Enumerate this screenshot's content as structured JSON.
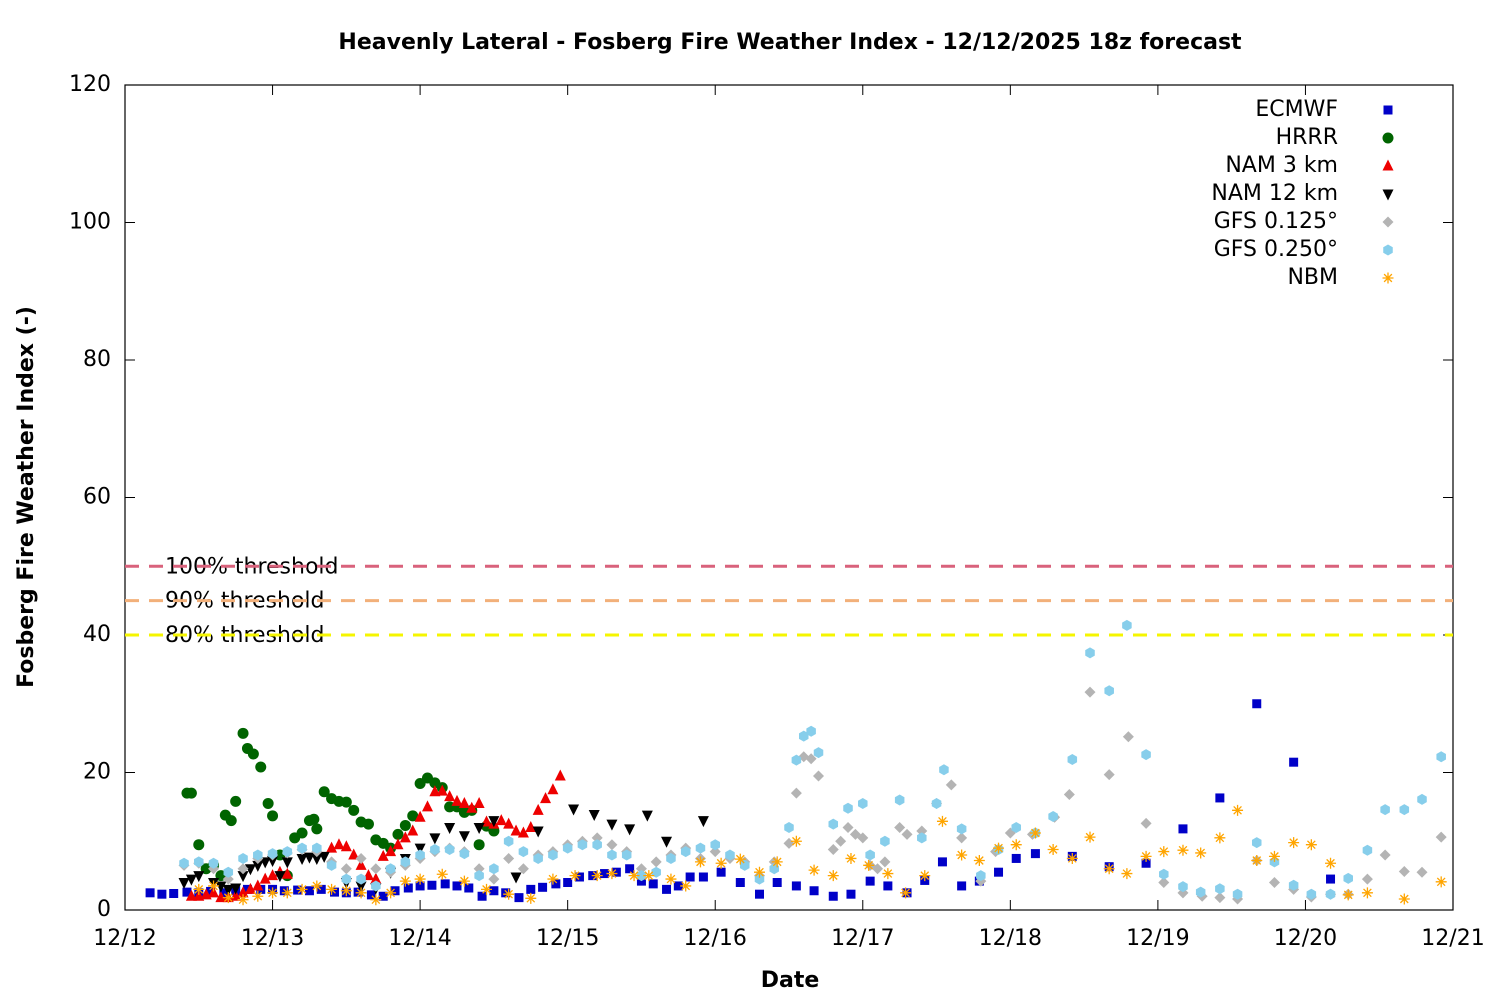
{
  "chart_data": {
    "type": "scatter",
    "title": "Heavenly Lateral - Fosberg Fire Weather Index - 12/12/2025 18z forecast",
    "xlabel": "Date",
    "ylabel": "Fosberg Fire Weather Index (-)",
    "xlim": [
      0,
      9
    ],
    "xticks": [
      {
        "value": 0,
        "label": "12/12"
      },
      {
        "value": 1,
        "label": "12/13"
      },
      {
        "value": 2,
        "label": "12/14"
      },
      {
        "value": 3,
        "label": "12/15"
      },
      {
        "value": 4,
        "label": "12/16"
      },
      {
        "value": 5,
        "label": "12/17"
      },
      {
        "value": 6,
        "label": "12/18"
      },
      {
        "value": 7,
        "label": "12/19"
      },
      {
        "value": 8,
        "label": "12/20"
      },
      {
        "value": 9,
        "label": "12/21"
      }
    ],
    "ylim": [
      0,
      120
    ],
    "yticks": [
      0,
      20,
      40,
      60,
      80,
      100,
      120
    ],
    "grid": false,
    "legend": "top right",
    "thresholds": [
      {
        "label": "100% threshold",
        "value": 50,
        "color": "#d9627c"
      },
      {
        "label": "90% threshold",
        "value": 45,
        "color": "#f2b07a"
      },
      {
        "label": "80% threshold",
        "value": 40,
        "color": "#f5f500"
      }
    ],
    "series": [
      {
        "name": "ECMWF",
        "color": "#0000c8",
        "marker": "square",
        "x": [
          0.17,
          0.25,
          0.33,
          0.42,
          0.5,
          0.58,
          0.67,
          0.75,
          0.83,
          0.92,
          1.0,
          1.08,
          1.17,
          1.25,
          1.33,
          1.42,
          1.5,
          1.58,
          1.67,
          1.75,
          1.83,
          1.92,
          2.0,
          2.08,
          2.17,
          2.25,
          2.33,
          2.42,
          2.5,
          2.58,
          2.67,
          2.75,
          2.83,
          2.92,
          3.0,
          3.08,
          3.17,
          3.25,
          3.33,
          3.42,
          3.5,
          3.58,
          3.67,
          3.75,
          3.83,
          3.92,
          4.04,
          4.17,
          4.3,
          4.42,
          4.55,
          4.67,
          4.8,
          4.92,
          5.05,
          5.17,
          5.3,
          5.42,
          5.54,
          5.67,
          5.79,
          5.92,
          6.04,
          6.17,
          6.42,
          6.67,
          6.92,
          7.17,
          7.42,
          7.67,
          7.92,
          8.17
        ],
        "values": [
          2.5,
          2.3,
          2.4,
          2.6,
          2.5,
          2.7,
          2.5,
          2.8,
          3,
          3,
          3,
          2.8,
          2.9,
          2.8,
          3,
          2.6,
          2.5,
          2.6,
          2.2,
          2.0,
          2.8,
          3.2,
          3.5,
          3.6,
          3.8,
          3.5,
          3.2,
          2.0,
          2.8,
          2.5,
          1.8,
          3.0,
          3.3,
          3.8,
          4.0,
          4.8,
          5.0,
          5.3,
          5.5,
          6.0,
          4.2,
          3.8,
          3.0,
          3.5,
          4.8,
          4.8,
          5.5,
          4,
          2.3,
          4,
          3.5,
          2.8,
          2,
          2.3,
          4.2,
          3.5,
          2.5,
          4.3,
          7,
          3.5,
          4.2,
          5.5,
          7.5,
          8.2,
          7.8,
          6.3,
          6.8,
          11.8,
          16.3,
          30,
          21.5,
          4.5
        ]
      },
      {
        "name": "HRRR",
        "color": "#006400",
        "marker": "circle",
        "x": [
          0.42,
          0.45,
          0.5,
          0.55,
          0.6,
          0.65,
          0.68,
          0.72,
          0.75,
          0.8,
          0.83,
          0.87,
          0.92,
          0.97,
          1.0,
          1.05,
          1.1,
          1.15,
          1.2,
          1.25,
          1.28,
          1.3,
          1.35,
          1.4,
          1.45,
          1.5,
          1.55,
          1.6,
          1.65,
          1.7,
          1.75,
          1.8,
          1.85,
          1.9,
          1.95,
          2.0,
          2.05,
          2.1,
          2.15,
          2.2,
          2.25,
          2.3,
          2.35,
          2.4,
          2.45,
          2.5
        ],
        "values": [
          17,
          17,
          9.5,
          6,
          6.5,
          5,
          13.8,
          13,
          15.8,
          25.7,
          23.5,
          22.7,
          20.8,
          15.5,
          13.7,
          8,
          5,
          10.5,
          11.2,
          13,
          13.2,
          11.8,
          17.2,
          16.2,
          15.8,
          15.7,
          14.5,
          12.8,
          12.5,
          10.2,
          9.7,
          9.0,
          11,
          12.3,
          13.7,
          18.4,
          19.2,
          18.5,
          17.8,
          15,
          15,
          14.2,
          14.5,
          9.5,
          12.2,
          11.5
        ]
      },
      {
        "name": "NAM 3 km",
        "color": "#ee0000",
        "marker": "triangle",
        "x": [
          0.45,
          0.5,
          0.55,
          0.6,
          0.65,
          0.7,
          0.75,
          0.8,
          0.85,
          0.9,
          0.95,
          1.0,
          1.05,
          1.1,
          1.4,
          1.45,
          1.5,
          1.55,
          1.6,
          1.65,
          1.7,
          1.75,
          1.8,
          1.85,
          1.9,
          1.95,
          2.0,
          2.05,
          2.1,
          2.15,
          2.2,
          2.25,
          2.3,
          2.35,
          2.4,
          2.45,
          2.5,
          2.55,
          2.6,
          2.65,
          2.7,
          2.75,
          2.8,
          2.85,
          2.9,
          2.95
        ],
        "values": [
          2,
          2,
          2.2,
          2.5,
          1.8,
          1.8,
          2,
          2.5,
          3,
          3.5,
          4.5,
          5,
          5.5,
          5.2,
          9,
          9.5,
          9.2,
          8,
          6.5,
          5,
          4.5,
          7.8,
          8.5,
          9.5,
          10.5,
          11.5,
          13.5,
          15,
          17.2,
          17.3,
          16.5,
          15.8,
          15.5,
          14.8,
          15.5,
          12.8,
          12.5,
          13,
          12.5,
          11.5,
          11.2,
          12,
          14.5,
          16.2,
          17.5,
          19.5
        ]
      },
      {
        "name": "NAM 12 km",
        "color": "#000000",
        "marker": "invtriangle",
        "x": [
          0.4,
          0.45,
          0.5,
          0.6,
          0.65,
          0.7,
          0.75,
          0.8,
          0.85,
          0.9,
          0.95,
          1.0,
          1.05,
          1.1,
          1.2,
          1.25,
          1.3,
          1.35,
          1.5,
          1.6,
          1.7,
          1.8,
          1.9,
          2.0,
          2.1,
          2.2,
          2.3,
          2.4,
          2.5,
          2.65,
          2.8,
          3.04,
          3.18,
          3.3,
          3.42,
          3.54,
          3.67,
          3.92
        ],
        "values": [
          4,
          4.5,
          5,
          4,
          3.5,
          3,
          3.2,
          5,
          6,
          6.5,
          7,
          7.2,
          5,
          7,
          7.5,
          7.7,
          7.5,
          7.8,
          4,
          3.5,
          3.2,
          5.5,
          7.5,
          9,
          10.5,
          12,
          10.8,
          12,
          13,
          4.8,
          11.5,
          14.7,
          13.9,
          12.5,
          11.8,
          13.8,
          10,
          13
        ]
      },
      {
        "name": "GFS 0.125°",
        "color": "#b4b4b4",
        "marker": "diamond",
        "x": [
          0.4,
          0.5,
          0.6,
          0.7,
          0.8,
          0.9,
          1.0,
          1.1,
          1.2,
          1.3,
          1.4,
          1.5,
          1.6,
          1.7,
          1.8,
          1.9,
          2.0,
          2.1,
          2.2,
          2.3,
          2.4,
          2.5,
          2.6,
          2.7,
          2.8,
          2.9,
          3.0,
          3.1,
          3.2,
          3.3,
          3.4,
          3.5,
          3.6,
          3.7,
          3.8,
          3.9,
          4.0,
          4.1,
          4.2,
          4.3,
          4.4,
          4.5,
          4.55,
          4.6,
          4.65,
          4.7,
          4.8,
          4.85,
          4.9,
          4.95,
          5.0,
          5.05,
          5.1,
          5.15,
          5.25,
          5.3,
          5.4,
          5.5,
          5.6,
          5.67,
          5.8,
          5.9,
          6.0,
          6.15,
          6.3,
          6.4,
          6.54,
          6.67,
          6.8,
          6.92,
          7.04,
          7.17,
          7.3,
          7.42,
          7.54,
          7.67,
          7.79,
          7.92,
          8.04,
          8.17,
          8.29,
          8.42,
          8.54,
          8.67,
          8.79,
          8.92
        ],
        "values": [
          6.5,
          6.8,
          6,
          4.5,
          6,
          7.5,
          8,
          8.3,
          8.8,
          8.5,
          7,
          6,
          7.5,
          6,
          5.5,
          6.5,
          7.5,
          8.5,
          9,
          8.5,
          6,
          4.5,
          7.5,
          6,
          8,
          8.5,
          9.5,
          10,
          10.5,
          9.5,
          8.5,
          6,
          7,
          8,
          9,
          7.5,
          8.5,
          7.5,
          7,
          5,
          7,
          9.7,
          17,
          22.3,
          22,
          19.5,
          8.8,
          10,
          12,
          11,
          10.5,
          6.5,
          6,
          7,
          12,
          11,
          11.5,
          15.5,
          18.2,
          10.5,
          4.2,
          8.5,
          11.2,
          11,
          13.5,
          16.8,
          31.7,
          19.7,
          25.2,
          12.6,
          4,
          2.5,
          2,
          1.8,
          1.6,
          7.2,
          4,
          3,
          1.9,
          2.3,
          2.3,
          4.5,
          8,
          5.6,
          5.5,
          10.6
        ]
      },
      {
        "name": "GFS 0.250°",
        "color": "#87ceeb",
        "marker": "hexagon",
        "x": [
          0.4,
          0.5,
          0.6,
          0.7,
          0.8,
          0.9,
          1.0,
          1.1,
          1.2,
          1.3,
          1.4,
          1.5,
          1.6,
          1.7,
          1.8,
          1.9,
          2.0,
          2.1,
          2.2,
          2.3,
          2.4,
          2.5,
          2.6,
          2.7,
          2.8,
          2.9,
          3.0,
          3.1,
          3.2,
          3.3,
          3.4,
          3.5,
          3.6,
          3.7,
          3.8,
          3.9,
          4.0,
          4.1,
          4.2,
          4.3,
          4.4,
          4.5,
          4.55,
          4.6,
          4.65,
          4.7,
          4.8,
          4.9,
          5.0,
          5.05,
          5.15,
          5.25,
          5.4,
          5.5,
          5.55,
          5.67,
          5.8,
          5.92,
          6.04,
          6.17,
          6.29,
          6.42,
          6.54,
          6.67,
          6.79,
          6.92,
          7.04,
          7.17,
          7.29,
          7.42,
          7.54,
          7.67,
          7.79,
          7.92,
          8.04,
          8.17,
          8.29,
          8.42,
          8.54,
          8.67,
          8.79,
          8.92
        ],
        "values": [
          6.8,
          7,
          6.8,
          5.5,
          7.5,
          8,
          8.2,
          8.5,
          9,
          9,
          6.5,
          4.5,
          4.5,
          3.5,
          6,
          7,
          8,
          8.8,
          8.8,
          8.2,
          5,
          6,
          10,
          8.5,
          7.5,
          8,
          9,
          9.5,
          9.5,
          8,
          8,
          5,
          5.5,
          7.5,
          8.5,
          9,
          9.5,
          8,
          6.5,
          4.5,
          6,
          12,
          21.8,
          25.3,
          26,
          22.9,
          12.5,
          14.8,
          15.5,
          8,
          10,
          16,
          10.5,
          15.5,
          20.4,
          11.8,
          5,
          8.8,
          12,
          11.2,
          13.6,
          21.9,
          37.4,
          31.9,
          41.4,
          22.6,
          5.2,
          3.4,
          2.6,
          3.1,
          2.3,
          9.8,
          7,
          3.6,
          2.3,
          2.3,
          4.6,
          8.7,
          14.6,
          14.6,
          16.1,
          22.3
        ]
      },
      {
        "name": "NBM",
        "color": "#ffa500",
        "marker": "asterisk",
        "x": [
          0.5,
          0.6,
          0.7,
          0.8,
          0.9,
          1.0,
          1.1,
          1.2,
          1.3,
          1.4,
          1.5,
          1.6,
          1.7,
          1.8,
          1.9,
          2.0,
          2.15,
          2.3,
          2.45,
          2.6,
          2.75,
          2.9,
          3.05,
          3.2,
          3.3,
          3.45,
          3.55,
          3.7,
          3.8,
          3.9,
          4.04,
          4.17,
          4.3,
          4.42,
          4.55,
          4.67,
          4.8,
          4.92,
          5.04,
          5.17,
          5.29,
          5.42,
          5.54,
          5.67,
          5.79,
          5.92,
          6.04,
          6.17,
          6.29,
          6.42,
          6.54,
          6.67,
          6.79,
          6.92,
          7.04,
          7.17,
          7.29,
          7.42,
          7.54,
          7.67,
          7.79,
          7.92,
          8.04,
          8.17,
          8.29,
          8.42,
          8.67,
          8.92
        ],
        "values": [
          3,
          3.5,
          1.8,
          1.5,
          2,
          2.5,
          2.5,
          3,
          3.5,
          3,
          2.8,
          2.5,
          1.5,
          2.5,
          4.2,
          4.5,
          5.2,
          4.2,
          3,
          2.3,
          1.7,
          4.5,
          5,
          5,
          5.3,
          5,
          5,
          4.5,
          3.5,
          7,
          6.8,
          7.4,
          5.5,
          7,
          10,
          5.8,
          5,
          7.5,
          6.5,
          5.3,
          2.5,
          5,
          12.9,
          8,
          7.2,
          9,
          9.5,
          11.2,
          8.8,
          7.5,
          10.6,
          6,
          5.3,
          7.8,
          8.5,
          8.7,
          8.3,
          10.5,
          14.5,
          7.2,
          7.8,
          9.8,
          9.5,
          6.8,
          2.2,
          2.5,
          1.6,
          4.1
        ]
      }
    ]
  }
}
